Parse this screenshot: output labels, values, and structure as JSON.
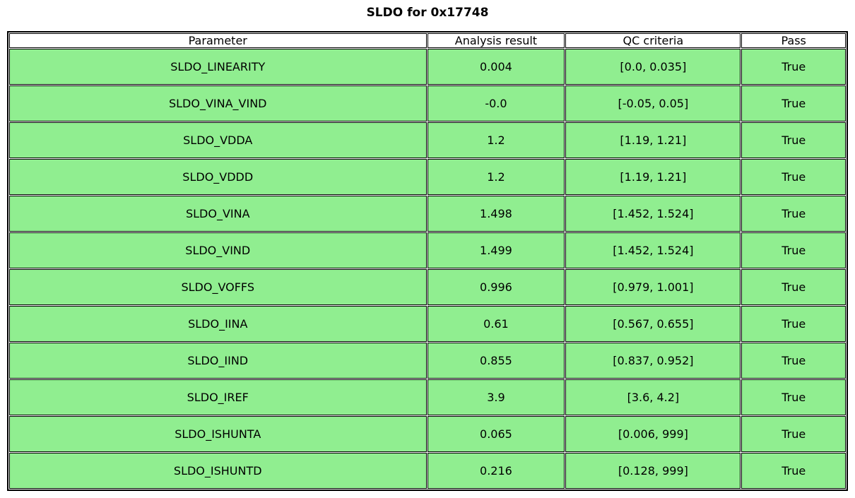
{
  "chart_data": {
    "type": "table",
    "title": "SLDO for 0x17748",
    "columns": [
      "Parameter",
      "Analysis result",
      "QC criteria",
      "Pass"
    ],
    "rows": [
      [
        "SLDO_LINEARITY",
        "0.004",
        "[0.0, 0.035]",
        "True"
      ],
      [
        "SLDO_VINA_VIND",
        "-0.0",
        "[-0.05, 0.05]",
        "True"
      ],
      [
        "SLDO_VDDA",
        "1.2",
        "[1.19, 1.21]",
        "True"
      ],
      [
        "SLDO_VDDD",
        "1.2",
        "[1.19, 1.21]",
        "True"
      ],
      [
        "SLDO_VINA",
        "1.498",
        "[1.452, 1.524]",
        "True"
      ],
      [
        "SLDO_VIND",
        "1.499",
        "[1.452, 1.524]",
        "True"
      ],
      [
        "SLDO_VOFFS",
        "0.996",
        "[0.979, 1.001]",
        "True"
      ],
      [
        "SLDO_IINA",
        "0.61",
        "[0.567, 0.655]",
        "True"
      ],
      [
        "SLDO_IIND",
        "0.855",
        "[0.837, 0.952]",
        "True"
      ],
      [
        "SLDO_IREF",
        "3.9",
        "[3.6, 4.2]",
        "True"
      ],
      [
        "SLDO_ISHUNTA",
        "0.065",
        "[0.006, 999]",
        "True"
      ],
      [
        "SLDO_ISHUNTD",
        "0.216",
        "[0.128, 999]",
        "True"
      ]
    ],
    "layout": {
      "header_fill_color": "#ffffff",
      "pass_row_fill_color": "#90ee90",
      "border_color": "#000000",
      "all_rows_pass": true
    }
  }
}
